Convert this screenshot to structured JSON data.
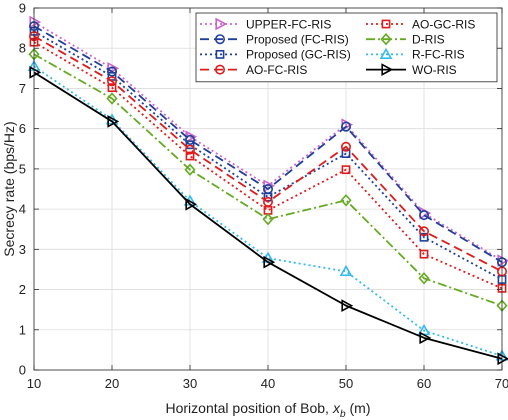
{
  "chart_data": {
    "type": "line",
    "title": "",
    "xlabel": "Horizontal position of Bob,",
    "xlabel_symbol": "x",
    "xlabel_subscript": "b",
    "xlabel_unit": "(m)",
    "ylabel": "Secrecy rate (bps/Hz)",
    "x": [
      10,
      20,
      30,
      40,
      50,
      60,
      70
    ],
    "xlim": [
      10,
      70
    ],
    "ylim": [
      0,
      9
    ],
    "xticks": [
      10,
      20,
      30,
      40,
      50,
      60,
      70
    ],
    "yticks": [
      0,
      1,
      2,
      3,
      4,
      5,
      6,
      7,
      8,
      9
    ],
    "grid": true,
    "legend_position": "top-right",
    "legend_columns": 2,
    "series": [
      {
        "name": "UPPER-FC-RIS",
        "color": "#cc66cc",
        "dash": "dot",
        "marker": "triangle-right",
        "values": [
          8.65,
          7.5,
          5.8,
          4.58,
          6.1,
          3.9,
          2.72
        ]
      },
      {
        "name": "Proposed (FC-RIS)",
        "color": "#1f3f9a",
        "dash": "dash",
        "marker": "circle",
        "values": [
          8.55,
          7.42,
          5.72,
          4.5,
          6.05,
          3.85,
          2.68
        ]
      },
      {
        "name": "Proposed (GC-RIS)",
        "color": "#1f3f9a",
        "dash": "dot",
        "marker": "square",
        "values": [
          8.42,
          7.3,
          5.6,
          4.3,
          5.38,
          3.3,
          2.25
        ]
      },
      {
        "name": "AO-FC-RIS",
        "color": "#e01b1b",
        "dash": "dash",
        "marker": "circle",
        "values": [
          8.3,
          7.18,
          5.48,
          4.18,
          5.55,
          3.45,
          2.45
        ]
      },
      {
        "name": "AO-GC-RIS",
        "color": "#e01b1b",
        "dash": "dot",
        "marker": "square",
        "values": [
          8.15,
          7.02,
          5.32,
          3.97,
          4.98,
          2.88,
          2.03
        ]
      },
      {
        "name": "D-RIS",
        "color": "#66aa22",
        "dash": "dashdot",
        "marker": "diamond",
        "values": [
          7.85,
          6.75,
          4.98,
          3.75,
          4.22,
          2.28,
          1.6
        ]
      },
      {
        "name": "R-FC-RIS",
        "color": "#33bbee",
        "dash": "dot",
        "marker": "triangle-up",
        "values": [
          7.55,
          6.22,
          4.2,
          2.78,
          2.45,
          0.98,
          0.35
        ]
      },
      {
        "name": "WO-RIS",
        "color": "#000000",
        "dash": "solid",
        "marker": "triangle-right",
        "values": [
          7.4,
          6.18,
          4.12,
          2.68,
          1.6,
          0.8,
          0.28
        ]
      }
    ]
  }
}
